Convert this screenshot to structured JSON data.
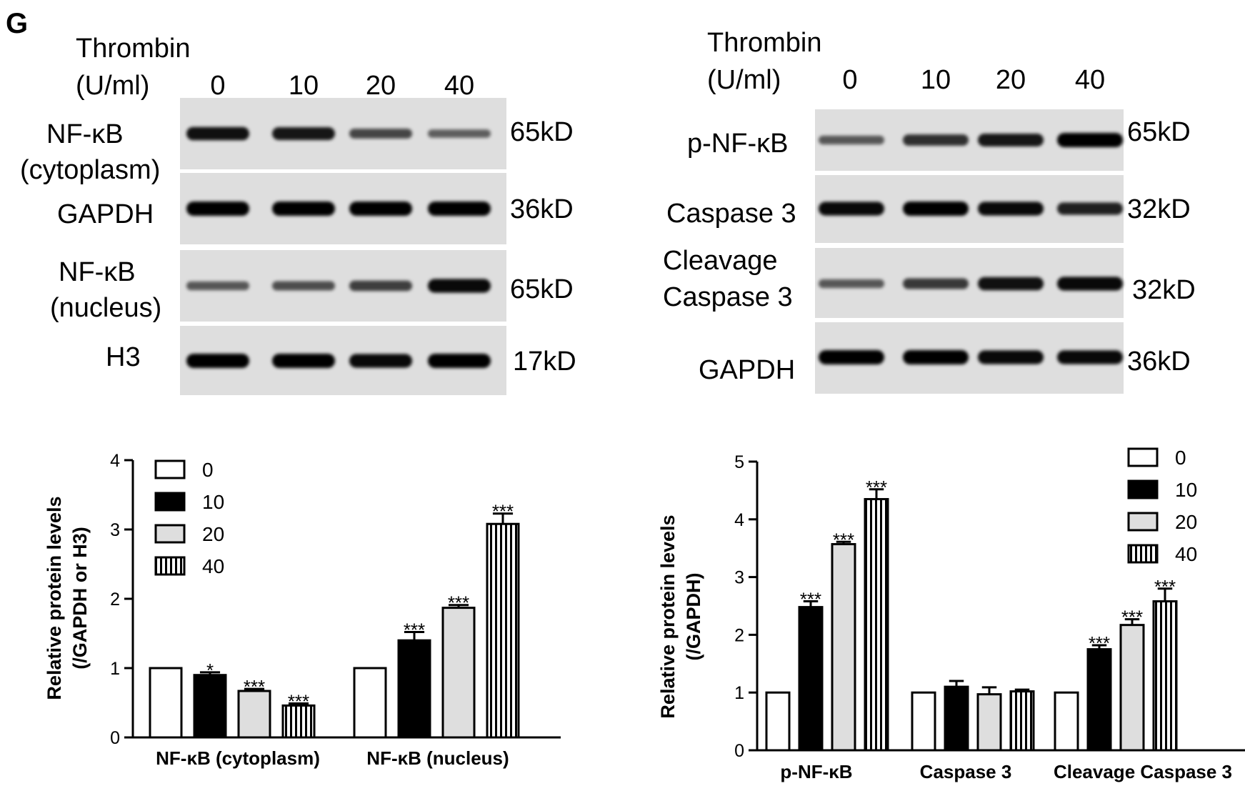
{
  "panel_label": "G",
  "blots": [
    {
      "name": "left-blot",
      "treatment_label": "Thrombin",
      "unit_label": "(U/ml)",
      "lanes": [
        "0",
        "10",
        "20",
        "40"
      ],
      "rows": [
        {
          "label_lines": [
            "NF-κB",
            "(cytoplasm)"
          ],
          "size": "65kD",
          "intensities": [
            0.9,
            0.85,
            0.55,
            0.4
          ]
        },
        {
          "label_lines": [
            "GAPDH"
          ],
          "size": "36kD",
          "intensities": [
            1,
            1,
            1,
            1
          ]
        },
        {
          "label_lines": [
            "NF-κB",
            "(nucleus)"
          ],
          "size": "65kD",
          "intensities": [
            0.45,
            0.5,
            0.6,
            0.95
          ]
        },
        {
          "label_lines": [
            "H3"
          ],
          "size": "17kD",
          "intensities": [
            1,
            1,
            0.95,
            1
          ]
        }
      ]
    },
    {
      "name": "right-blot",
      "treatment_label": "Thrombin",
      "unit_label": "(U/ml)",
      "lanes": [
        "0",
        "10",
        "20",
        "40"
      ],
      "rows": [
        {
          "label_lines": [
            "p-NF-κB"
          ],
          "size": "65kD",
          "intensities": [
            0.45,
            0.7,
            0.85,
            1
          ]
        },
        {
          "label_lines": [
            "Caspase 3"
          ],
          "size": "32kD",
          "intensities": [
            0.95,
            1,
            0.95,
            0.8
          ]
        },
        {
          "label_lines": [
            "Cleavage",
            "Caspase 3"
          ],
          "size": "32kD",
          "intensities": [
            0.45,
            0.65,
            0.9,
            0.95
          ]
        },
        {
          "label_lines": [
            "GAPDH"
          ],
          "size": "36kD",
          "intensities": [
            1,
            1,
            0.95,
            0.95
          ]
        }
      ]
    }
  ],
  "chart_data": [
    {
      "type": "bar",
      "ylabel_lines": [
        "Relative protein levels",
        "(/GAPDH or H3)"
      ],
      "ylim": [
        0,
        4
      ],
      "yticks": [
        "0",
        "1",
        "2",
        "3",
        "4"
      ],
      "categories": [
        "NF-κB (cytoplasm)",
        "NF-κB (nucleus)"
      ],
      "legend_position": "top-left",
      "series": [
        {
          "name": "0",
          "values": [
            1.0,
            1.0
          ],
          "errors": [
            0,
            0
          ],
          "significance": [
            "",
            ""
          ]
        },
        {
          "name": "10",
          "values": [
            0.9,
            1.4
          ],
          "errors": [
            0.04,
            0.12
          ],
          "significance": [
            "*",
            "***"
          ]
        },
        {
          "name": "20",
          "values": [
            0.67,
            1.87
          ],
          "errors": [
            0.03,
            0.04
          ],
          "significance": [
            "***",
            "***"
          ]
        },
        {
          "name": "40",
          "values": [
            0.46,
            3.08
          ],
          "errors": [
            0.03,
            0.15
          ],
          "significance": [
            "***",
            "***"
          ]
        }
      ]
    },
    {
      "type": "bar",
      "ylabel_lines": [
        "Relative protein levels",
        "(/GAPDH)"
      ],
      "ylim": [
        0,
        5
      ],
      "yticks": [
        "0",
        "1",
        "2",
        "3",
        "4",
        "5"
      ],
      "categories": [
        "p-NF-κB",
        "Caspase 3",
        "Cleavage Caspase 3"
      ],
      "legend_position": "top-right",
      "series": [
        {
          "name": "0",
          "values": [
            1.0,
            1.0,
            1.0
          ],
          "errors": [
            0,
            0,
            0
          ],
          "significance": [
            "",
            "",
            ""
          ]
        },
        {
          "name": "10",
          "values": [
            2.48,
            1.1,
            1.75
          ],
          "errors": [
            0.1,
            0.1,
            0.07
          ],
          "significance": [
            "***",
            "",
            "***"
          ]
        },
        {
          "name": "20",
          "values": [
            3.57,
            0.97,
            2.17
          ],
          "errors": [
            0.04,
            0.12,
            0.1
          ],
          "significance": [
            "***",
            "",
            "***"
          ]
        },
        {
          "name": "40",
          "values": [
            4.35,
            1.02,
            2.58
          ],
          "errors": [
            0.17,
            0.03,
            0.22
          ],
          "significance": [
            "***",
            "",
            "***"
          ]
        }
      ]
    }
  ]
}
